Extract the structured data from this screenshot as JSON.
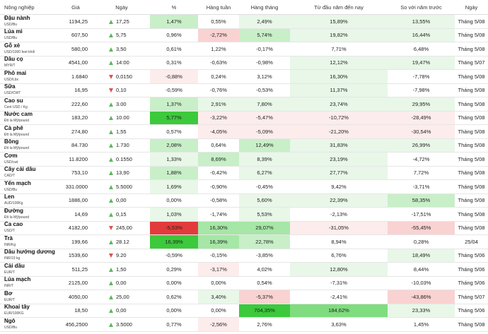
{
  "headers": [
    "Nông nghiệp",
    "Giá",
    "Ngày",
    "%",
    "Hàng tuần",
    "Hàng tháng",
    "Từ đầu năm đến nay",
    "So với năm trước",
    "Ngày"
  ],
  "colors": {
    "pos1": "#e8f7e8",
    "pos2": "#c8efc8",
    "pos3": "#a6e6a6",
    "pos4": "#7fdc7f",
    "pos5": "#3cc93c",
    "neg1": "#fdecec",
    "neg2": "#f9d2d2",
    "neg3": "#f3b3b3",
    "neg4": "#e97a7a",
    "neg5": "#e23b3b",
    "up": "#5cb85c",
    "down": "#d9534f"
  },
  "rows": [
    {
      "name": "Đậu nành",
      "unit": "USD/Bu",
      "price": "1194,25",
      "dir": "up",
      "change": "17,25",
      "pct": "1,47%",
      "week": "0,55%",
      "month": "2,49%",
      "ytd": "15,89%",
      "yoy": "13,55%",
      "date": "Tháng 5/08",
      "pct_bg": "pos2",
      "week_bg": "",
      "month_bg": "pos1",
      "ytd_bg": "pos1",
      "yoy_bg": "pos1"
    },
    {
      "name": "Lúa mì",
      "unit": "USD/Bu",
      "price": "607,50",
      "dir": "up",
      "change": "5,75",
      "pct": "0,96%",
      "week": "-2,72%",
      "month": "5,74%",
      "ytd": "19,82%",
      "yoy": "16,44%",
      "date": "Tháng 5/08",
      "pct_bg": "",
      "week_bg": "neg2",
      "month_bg": "pos2",
      "ytd_bg": "pos1",
      "yoy_bg": "pos1"
    },
    {
      "name": "Gỗ xẻ",
      "unit": "USD/1000 feet khối",
      "price": "580,00",
      "dir": "up",
      "change": "3,50",
      "pct": "0,61%",
      "week": "1,22%",
      "month": "-0,17%",
      "ytd": "7,71%",
      "yoy": "6,48%",
      "date": "Tháng 5/08",
      "pct_bg": "",
      "week_bg": "",
      "month_bg": "",
      "ytd_bg": "",
      "yoy_bg": ""
    },
    {
      "name": "Dầu cọ",
      "unit": "MYR/T",
      "price": "4541,00",
      "dir": "up",
      "change": "14:00",
      "pct": "0,31%",
      "week": "-0,63%",
      "month": "-0,98%",
      "ytd": "12,12%",
      "yoy": "19,47%",
      "date": "Tháng 5/07",
      "pct_bg": "",
      "week_bg": "",
      "month_bg": "",
      "ytd_bg": "pos1",
      "yoy_bg": "pos1"
    },
    {
      "name": "Phô mai",
      "unit": "USD/Lbs",
      "price": "1.6840",
      "dir": "down",
      "change": "0,0150",
      "pct": "-0,88%",
      "week": "0,24%",
      "month": "3,12%",
      "ytd": "16,30%",
      "yoy": "-7,78%",
      "date": "Tháng 5/08",
      "pct_bg": "neg1",
      "week_bg": "",
      "month_bg": "",
      "ytd_bg": "pos1",
      "yoy_bg": ""
    },
    {
      "name": "Sữa",
      "unit": "USD/CWT",
      "price": "16,95",
      "dir": "down",
      "change": "0,10",
      "pct": "-0,59%",
      "week": "-0,76%",
      "month": "-0,53%",
      "ytd": "11,37%",
      "yoy": "-7,98%",
      "date": "Tháng 5/08",
      "pct_bg": "",
      "week_bg": "",
      "month_bg": "",
      "ytd_bg": "pos1",
      "yoy_bg": ""
    },
    {
      "name": "Cao su",
      "unit": "Cent USD / Kg",
      "price": "222,60",
      "dir": "up",
      "change": "3.00",
      "pct": "1,37%",
      "week": "2,91%",
      "month": "7,80%",
      "ytd": "23,74%",
      "yoy": "29,95%",
      "date": "Tháng 5/08",
      "pct_bg": "pos2",
      "week_bg": "pos1",
      "month_bg": "pos1",
      "ytd_bg": "pos1",
      "yoy_bg": "pos1"
    },
    {
      "name": "Nước cam",
      "unit": "Đô la Mỹ/pound",
      "price": "183,20",
      "dir": "up",
      "change": "10.00",
      "pct": "5,77%",
      "week": "-3,22%",
      "month": "-5,47%",
      "ytd": "-10,72%",
      "yoy": "-28,49%",
      "date": "Tháng 5/08",
      "pct_bg": "pos5",
      "week_bg": "neg1",
      "month_bg": "neg1",
      "ytd_bg": "neg1",
      "yoy_bg": "neg1"
    },
    {
      "name": "Cà phê",
      "unit": "Đô la Mỹ/pound",
      "price": "274,80",
      "dir": "up",
      "change": "1,55",
      "pct": "0,57%",
      "week": "-4,05%",
      "month": "-5,09%",
      "ytd": "-21,20%",
      "yoy": "-30,54%",
      "date": "Tháng 5/08",
      "pct_bg": "",
      "week_bg": "neg1",
      "month_bg": "neg1",
      "ytd_bg": "neg1",
      "yoy_bg": "neg1"
    },
    {
      "name": "Bông",
      "unit": "Đô la Mỹ/pound",
      "price": "84.730",
      "dir": "up",
      "change": "1.730",
      "pct": "2,08%",
      "week": "0,64%",
      "month": "12,49%",
      "ytd": "31,83%",
      "yoy": "26,99%",
      "date": "Tháng 5/08",
      "pct_bg": "pos2",
      "week_bg": "",
      "month_bg": "pos2",
      "ytd_bg": "pos1",
      "yoy_bg": "pos1"
    },
    {
      "name": "Cơm",
      "unit": "USD/cwt",
      "price": "11.8200",
      "dir": "up",
      "change": "0.1550",
      "pct": "1,33%",
      "week": "8,69%",
      "month": "8,39%",
      "ytd": "23,19%",
      "yoy": "-4,72%",
      "date": "Tháng 5/08",
      "pct_bg": "pos1",
      "week_bg": "pos2",
      "month_bg": "pos1",
      "ytd_bg": "pos1",
      "yoy_bg": ""
    },
    {
      "name": "Cây cải dầu",
      "unit": "CAD/T",
      "price": "753,10",
      "dir": "up",
      "change": "13,90",
      "pct": "1,88%",
      "week": "-0,42%",
      "month": "6,27%",
      "ytd": "27,77%",
      "yoy": "7,72%",
      "date": "Tháng 5/08",
      "pct_bg": "pos2",
      "week_bg": "",
      "month_bg": "pos1",
      "ytd_bg": "pos1",
      "yoy_bg": ""
    },
    {
      "name": "Yến mạch",
      "unit": "USD/Bu",
      "price": "331.0000",
      "dir": "up",
      "change": "5.5000",
      "pct": "1,69%",
      "week": "-0,90%",
      "month": "-0,45%",
      "ytd": "9,42%",
      "yoy": "-3,71%",
      "date": "Tháng 5/08",
      "pct_bg": "pos1",
      "week_bg": "",
      "month_bg": "",
      "ytd_bg": "",
      "yoy_bg": ""
    },
    {
      "name": "Len",
      "unit": "AUD/100Kg",
      "price": "1886,00",
      "dir": "up",
      "change": "0,00",
      "pct": "0,00%",
      "week": "-0,58%",
      "month": "5,60%",
      "ytd": "22,39%",
      "yoy": "58,35%",
      "date": "Tháng 5/08",
      "pct_bg": "",
      "week_bg": "",
      "month_bg": "pos1",
      "ytd_bg": "pos1",
      "yoy_bg": "pos2"
    },
    {
      "name": "Đường",
      "unit": "Đô la Mỹ/pound",
      "price": "14,69",
      "dir": "up",
      "change": "0,15",
      "pct": "1,03%",
      "week": "-1,74%",
      "month": "5,53%",
      "ytd": "-2,13%",
      "yoy": "-17,51%",
      "date": "Tháng 5/08",
      "pct_bg": "pos1",
      "week_bg": "",
      "month_bg": "pos1",
      "ytd_bg": "",
      "yoy_bg": ""
    },
    {
      "name": "Ca cao",
      "unit": "USD/T",
      "price": "4182,00",
      "dir": "down",
      "change": "245,00",
      "pct": "-5,53%",
      "week": "16,30%",
      "month": "29,07%",
      "ytd": "-31,05%",
      "yoy": "-55,45%",
      "date": "Tháng 5/08",
      "pct_bg": "neg5",
      "week_bg": "pos3",
      "month_bg": "pos3",
      "ytd_bg": "neg1",
      "yoy_bg": "neg2"
    },
    {
      "name": "Trà",
      "unit": "INR/Kg",
      "price": "199,66",
      "dir": "up",
      "change": "28.12",
      "pct": "16,39%",
      "week": "16,39%",
      "month": "22,78%",
      "ytd": "8,94%",
      "yoy": "0,28%",
      "date": "25/04",
      "pct_bg": "pos5",
      "week_bg": "pos3",
      "month_bg": "pos2",
      "ytd_bg": "",
      "yoy_bg": ""
    },
    {
      "name": "Dầu hướng dương",
      "unit": "INR/10 kg",
      "price": "1539,60",
      "dir": "down",
      "change": "9.20",
      "pct": "-0,59%",
      "week": "-0,15%",
      "month": "-3,85%",
      "ytd": "6,76%",
      "yoy": "18,49%",
      "date": "Tháng 5/06",
      "pct_bg": "",
      "week_bg": "",
      "month_bg": "",
      "ytd_bg": "",
      "yoy_bg": "pos1"
    },
    {
      "name": "Cải dầu",
      "unit": "EUR/T",
      "price": "511,25",
      "dir": "up",
      "change": "1,50",
      "pct": "0,29%",
      "week": "-3,17%",
      "month": "4,02%",
      "ytd": "12,80%",
      "yoy": "8,44%",
      "date": "Tháng 5/06",
      "pct_bg": "",
      "week_bg": "neg1",
      "month_bg": "",
      "ytd_bg": "pos1",
      "yoy_bg": ""
    },
    {
      "name": "Lúa mạch",
      "unit": "INR/T",
      "price": "2125,00",
      "dir": "up",
      "change": "0,00",
      "pct": "0,00%",
      "week": "0,00%",
      "month": "0,54%",
      "ytd": "-7,31%",
      "yoy": "-10,03%",
      "date": "Tháng 5/06",
      "pct_bg": "",
      "week_bg": "",
      "month_bg": "",
      "ytd_bg": "",
      "yoy_bg": ""
    },
    {
      "name": "Bơ",
      "unit": "EUR/T",
      "price": "4050,00",
      "dir": "up",
      "change": "25,00",
      "pct": "0,62%",
      "week": "3,40%",
      "month": "-5,37%",
      "ytd": "-2,41%",
      "yoy": "-43,86%",
      "date": "Tháng 5/07",
      "pct_bg": "",
      "week_bg": "pos1",
      "month_bg": "neg2",
      "ytd_bg": "",
      "yoy_bg": "neg2"
    },
    {
      "name": "Khoai tây",
      "unit": "EUR/100KG",
      "price": "18,50",
      "dir": "up",
      "change": "0,00",
      "pct": "0,00%",
      "week": "0,00%",
      "month": "704,35%",
      "ytd": "184,62%",
      "yoy": "23,33%",
      "date": "Tháng 5/06",
      "pct_bg": "",
      "week_bg": "",
      "month_bg": "pos5",
      "ytd_bg": "pos4",
      "yoy_bg": "pos1"
    },
    {
      "name": "Ngô",
      "unit": "USD/Bu",
      "price": "456,2500",
      "dir": "up",
      "change": "3.5000",
      "pct": "0,77%",
      "week": "-2,56%",
      "month": "2,76%",
      "ytd": "3,63%",
      "yoy": "1,45%",
      "date": "Tháng 5/08",
      "pct_bg": "",
      "week_bg": "neg1",
      "month_bg": "",
      "ytd_bg": "",
      "yoy_bg": ""
    }
  ]
}
